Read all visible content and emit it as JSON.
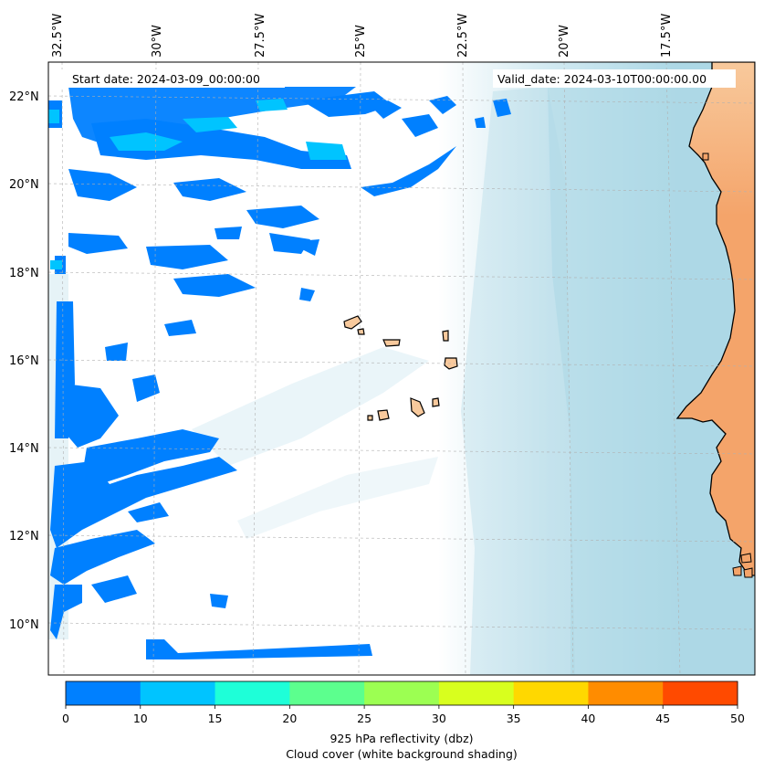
{
  "map": {
    "start_date": "Start date: 2024-03-09_00:00:00",
    "valid_date": "Valid_date: 2024-03-10T00:00:00.00",
    "lon_labels": [
      "32.5°W",
      "30°W",
      "27.5°W",
      "25°W",
      "22.5°W",
      "20°W",
      "17.5°W"
    ],
    "lat_labels": [
      "22°N",
      "20°N",
      "18°N",
      "16°N",
      "14°N",
      "12°N",
      "10°N"
    ],
    "colors": {
      "land": "#f4a46a",
      "land_light": "#f8c99c",
      "sea_cloud": "#add8e6",
      "reflectivity_low": "#0080ff",
      "reflectivity_mid": "#00ccff"
    }
  },
  "colorbar": {
    "ticks": [
      "0",
      "10",
      "15",
      "20",
      "25",
      "30",
      "35",
      "40",
      "45",
      "50"
    ],
    "colors": [
      "#0080ff",
      "#00c4ff",
      "#1effd8",
      "#5cff8e",
      "#9cff52",
      "#d8ff1e",
      "#ffd800",
      "#ff8c00",
      "#ff4a00"
    ],
    "label_line1": "925 hPa reflectivity (dbz)",
    "label_line2": "Cloud cover (white background shading)"
  }
}
